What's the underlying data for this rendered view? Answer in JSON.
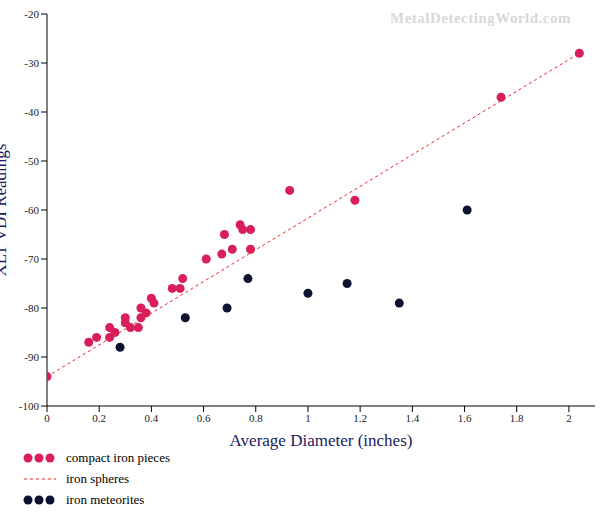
{
  "chart_data": {
    "type": "scatter",
    "x_label": "Average Diameter (inches)",
    "y_label": "XLT VDI Readings",
    "annotations": [
      {
        "text": "MetalDetectingWorld.com"
      }
    ],
    "xlim": [
      0,
      2.1
    ],
    "xticks": [
      0,
      0.2,
      0.4,
      0.6,
      0.8,
      1,
      1.2,
      1.4,
      1.6,
      1.8,
      2
    ],
    "ylim": [
      -100,
      -20
    ],
    "yticks": [
      -100,
      -90,
      -80,
      -70,
      -60,
      -50,
      -40,
      -30,
      -20
    ],
    "grid": false,
    "legend": "bottom left",
    "series": [
      {
        "name": "compact iron pieces",
        "type": "scatter",
        "marker": "circle",
        "color": "#d81e5b",
        "x": [
          0,
          0.16,
          0.19,
          0.24,
          0.24,
          0.26,
          0.3,
          0.3,
          0.32,
          0.35,
          0.36,
          0.36,
          0.38,
          0.4,
          0.41,
          0.48,
          0.51,
          0.52,
          0.61,
          0.67,
          0.68,
          0.71,
          0.74,
          0.75,
          0.78,
          0.78,
          0.93,
          1.18,
          1.74,
          2.04
        ],
        "values": [
          -94,
          -87,
          -86,
          -84,
          -86,
          -85,
          -82,
          -83,
          -84,
          -84,
          -82,
          -80,
          -81,
          -78,
          -79,
          -76,
          -76,
          -74,
          -70,
          -69,
          -65,
          -68,
          -63,
          -64,
          -64,
          -68,
          -56,
          -58,
          -37,
          -28
        ]
      },
      {
        "name": "iron spheres",
        "type": "line",
        "line_style": "dashed",
        "color": "#e8262b",
        "x": [
          0,
          2.04
        ],
        "values": [
          -94,
          -28
        ]
      },
      {
        "name": "iron meteorites",
        "type": "scatter",
        "marker": "circle",
        "color": "#0d1230",
        "x": [
          0.28,
          0.53,
          0.69,
          0.77,
          1.0,
          1.15,
          1.35,
          1.61
        ],
        "values": [
          -88,
          -82,
          -80,
          -74,
          -77,
          -75,
          -79,
          -60
        ]
      }
    ]
  }
}
